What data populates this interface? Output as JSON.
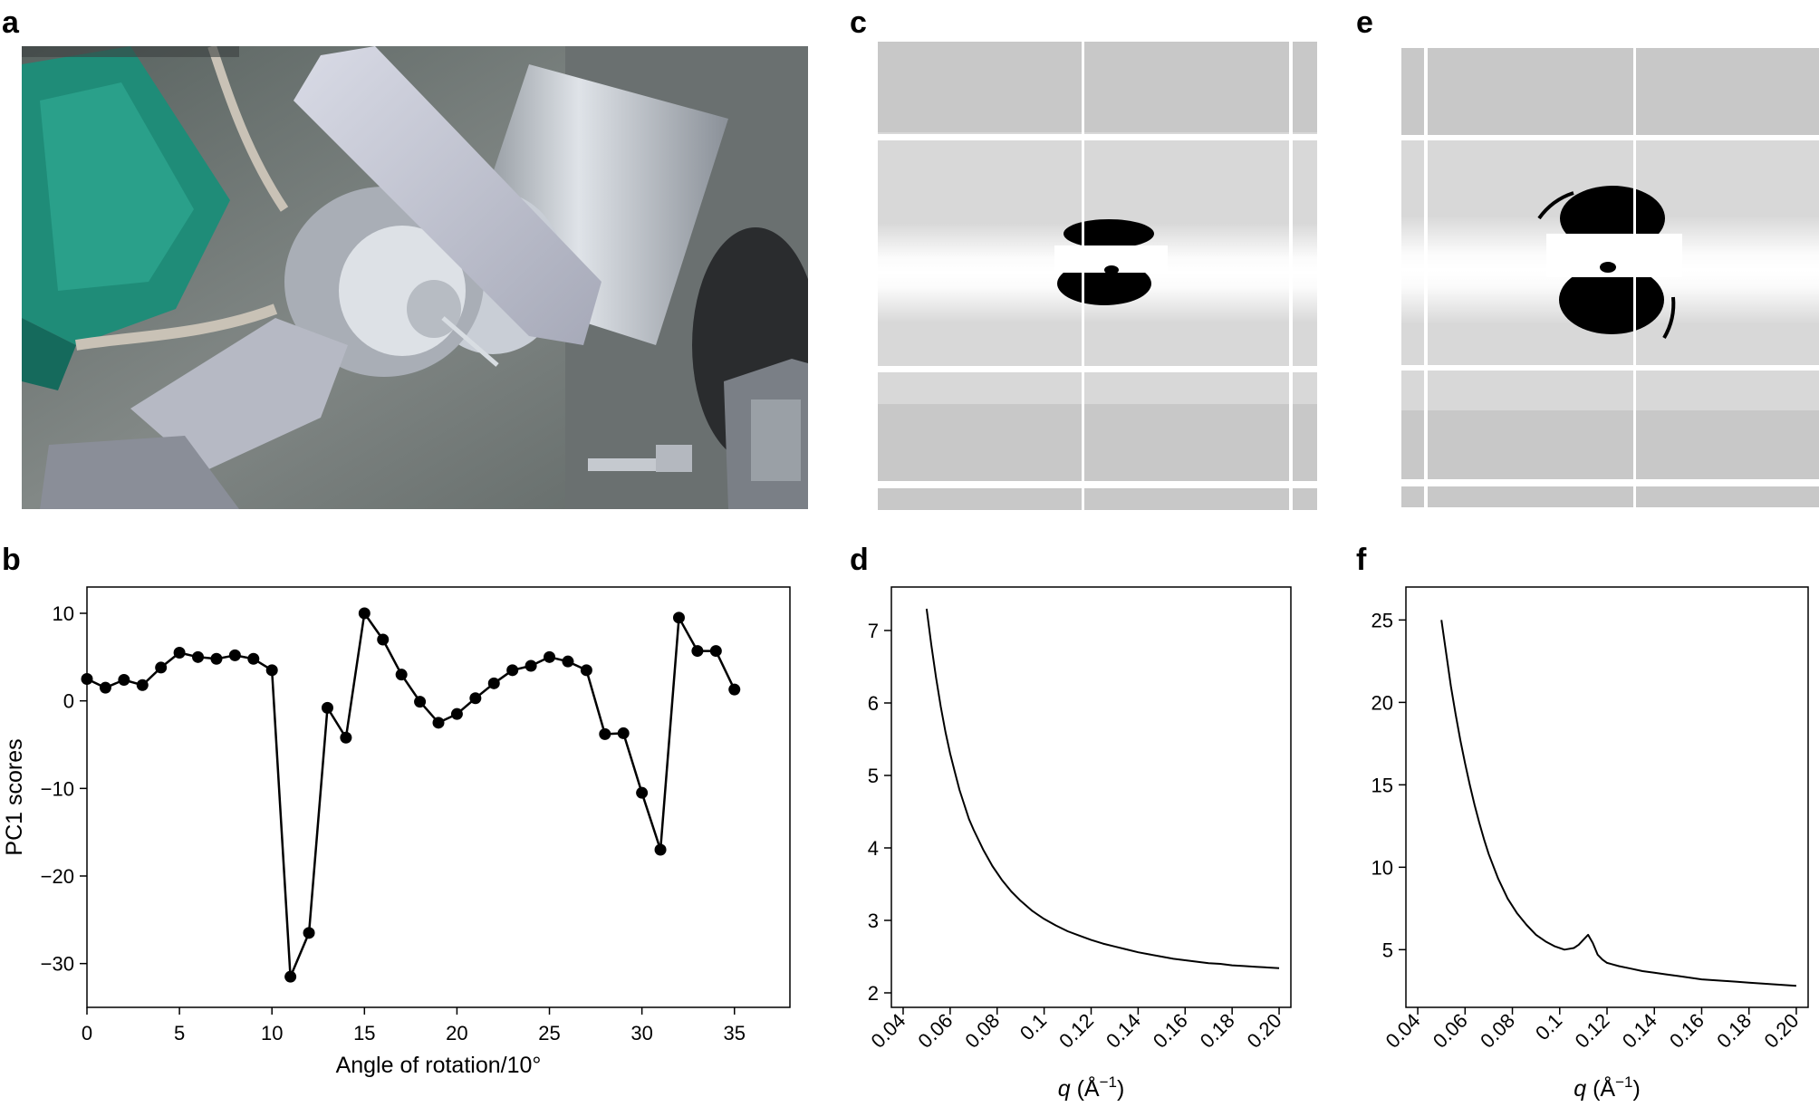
{
  "panel_labels": {
    "a": "a",
    "b": "b",
    "c": "c",
    "d": "d",
    "e": "e",
    "f": "f"
  },
  "chart_data": [
    {
      "panel": "b",
      "type": "line",
      "xlabel": "Angle of rotation/10°",
      "ylabel": "PC1 scores",
      "xlim": [
        0,
        38
      ],
      "ylim": [
        -35,
        13
      ],
      "xticks": [
        0,
        5,
        10,
        15,
        20,
        25,
        30,
        35
      ],
      "yticks": [
        10,
        0,
        -10,
        -20,
        -30
      ],
      "xtick_labels": [
        "0",
        "5",
        "10",
        "15",
        "20",
        "25",
        "30",
        "35"
      ],
      "ytick_labels": [
        "10",
        "0",
        "−10",
        "−20",
        "−30"
      ],
      "marker": "circle",
      "color": "#000000",
      "x": [
        0,
        1,
        2,
        3,
        4,
        5,
        6,
        7,
        8,
        9,
        10,
        11,
        12,
        13,
        14,
        15,
        16,
        17,
        18,
        19,
        20,
        21,
        22,
        23,
        24,
        25,
        26,
        27,
        28,
        29,
        30,
        31,
        32,
        33,
        34,
        35
      ],
      "y": [
        2.5,
        1.5,
        2.4,
        1.8,
        3.8,
        5.5,
        5.0,
        4.8,
        5.2,
        4.8,
        3.5,
        -31.5,
        -26.5,
        -0.8,
        -4.2,
        10.0,
        7.0,
        3.0,
        -0.1,
        -2.5,
        -1.5,
        0.3,
        2.0,
        3.5,
        4.0,
        5.0,
        4.5,
        3.5,
        -3.8,
        -3.7,
        -10.5,
        -17.0,
        9.5,
        5.7,
        5.7,
        1.3
      ]
    },
    {
      "panel": "d",
      "type": "line",
      "xlabel_var": "q",
      "xlabel_unit": "(Å",
      "xlabel_sup": "−1",
      "xlabel_close": ")",
      "ylabel": "",
      "xlim": [
        0.035,
        0.205
      ],
      "ylim": [
        1.8,
        7.6
      ],
      "xticks": [
        0.04,
        0.06,
        0.08,
        0.1,
        0.12,
        0.14,
        0.16,
        0.18,
        0.2
      ],
      "xtick_labels": [
        "0.04",
        "0.06",
        "0.08",
        "0.1",
        "0.12",
        "0.14",
        "0.16",
        "0.18",
        "0.20"
      ],
      "yticks": [
        2,
        3,
        4,
        5,
        6,
        7
      ],
      "ytick_labels": [
        "2",
        "3",
        "4",
        "5",
        "6",
        "7"
      ],
      "color": "#000000",
      "x": [
        0.05,
        0.052,
        0.054,
        0.056,
        0.058,
        0.06,
        0.062,
        0.064,
        0.066,
        0.068,
        0.07,
        0.074,
        0.078,
        0.082,
        0.086,
        0.09,
        0.095,
        0.1,
        0.105,
        0.11,
        0.115,
        0.12,
        0.125,
        0.13,
        0.135,
        0.14,
        0.145,
        0.15,
        0.155,
        0.16,
        0.165,
        0.17,
        0.175,
        0.18,
        0.185,
        0.19,
        0.195,
        0.2
      ],
      "y": [
        7.3,
        6.8,
        6.35,
        5.95,
        5.6,
        5.3,
        5.05,
        4.8,
        4.6,
        4.4,
        4.25,
        3.98,
        3.75,
        3.56,
        3.4,
        3.27,
        3.13,
        3.02,
        2.93,
        2.85,
        2.79,
        2.73,
        2.68,
        2.64,
        2.6,
        2.56,
        2.53,
        2.5,
        2.47,
        2.45,
        2.43,
        2.41,
        2.4,
        2.38,
        2.37,
        2.36,
        2.35,
        2.34
      ]
    },
    {
      "panel": "f",
      "type": "line",
      "xlabel_var": "q",
      "xlabel_unit": "(Å",
      "xlabel_sup": "−1",
      "xlabel_close": ")",
      "ylabel": "",
      "xlim": [
        0.035,
        0.205
      ],
      "ylim": [
        1.5,
        27
      ],
      "xticks": [
        0.04,
        0.06,
        0.08,
        0.1,
        0.12,
        0.14,
        0.16,
        0.18,
        0.2
      ],
      "xtick_labels": [
        "0.04",
        "0.06",
        "0.08",
        "0.1",
        "0.12",
        "0.14",
        "0.16",
        "0.18",
        "0.20"
      ],
      "yticks": [
        5,
        10,
        15,
        20,
        25
      ],
      "ytick_labels": [
        "5",
        "10",
        "15",
        "20",
        "25"
      ],
      "color": "#000000",
      "x": [
        0.05,
        0.052,
        0.054,
        0.056,
        0.058,
        0.06,
        0.062,
        0.064,
        0.066,
        0.068,
        0.07,
        0.074,
        0.078,
        0.082,
        0.086,
        0.09,
        0.094,
        0.098,
        0.102,
        0.106,
        0.108,
        0.11,
        0.112,
        0.114,
        0.116,
        0.118,
        0.12,
        0.125,
        0.13,
        0.135,
        0.14,
        0.145,
        0.15,
        0.155,
        0.16,
        0.165,
        0.17,
        0.175,
        0.18,
        0.185,
        0.19,
        0.195,
        0.2
      ],
      "y": [
        25.0,
        23.0,
        21.0,
        19.3,
        17.7,
        16.3,
        15.0,
        13.8,
        12.7,
        11.7,
        10.8,
        9.3,
        8.1,
        7.2,
        6.5,
        5.9,
        5.5,
        5.2,
        5.0,
        5.1,
        5.3,
        5.6,
        5.9,
        5.4,
        4.7,
        4.4,
        4.2,
        4.0,
        3.85,
        3.7,
        3.6,
        3.5,
        3.4,
        3.3,
        3.2,
        3.15,
        3.1,
        3.05,
        3.0,
        2.95,
        2.9,
        2.85,
        2.8
      ]
    }
  ]
}
